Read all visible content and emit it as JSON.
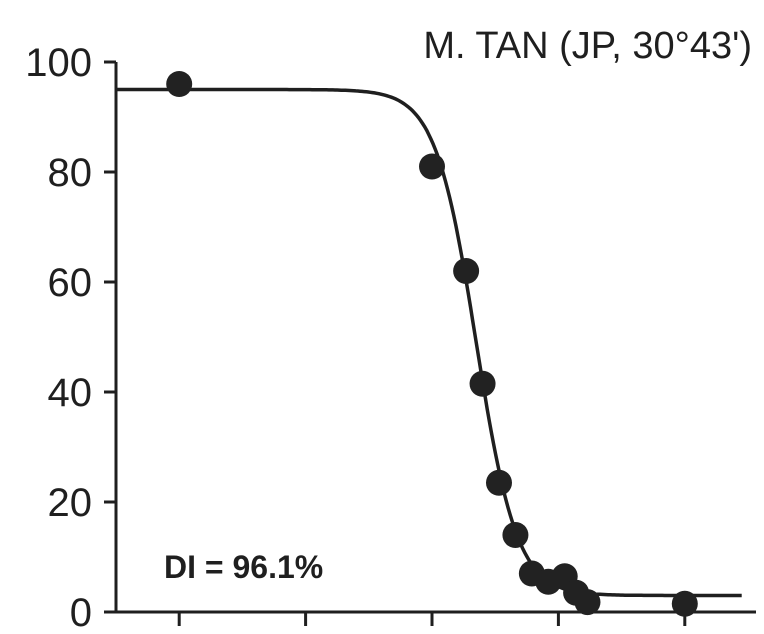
{
  "chart_data": {
    "type": "scatter",
    "title": "M. TAN (JP, 30°43')",
    "annotation": "DI = 96.1%",
    "xlabel": "",
    "ylabel": "",
    "ylim": [
      0,
      100
    ],
    "xlim": [
      0,
      5
    ],
    "y_ticks": [
      0,
      20,
      40,
      60,
      80,
      100
    ],
    "y_tick_labels": [
      "0",
      "20",
      "40",
      "60",
      "80",
      "100"
    ],
    "x_ticks": [
      0.5,
      1.5,
      2.5,
      3.5,
      4.5
    ],
    "grid": false,
    "series": [
      {
        "points": [
          {
            "x": 0.5,
            "y": 96
          },
          {
            "x": 2.5,
            "y": 81
          },
          {
            "x": 2.77,
            "y": 62
          },
          {
            "x": 2.9,
            "y": 41.5
          },
          {
            "x": 3.03,
            "y": 23.5
          },
          {
            "x": 3.16,
            "y": 14
          },
          {
            "x": 3.29,
            "y": 7
          },
          {
            "x": 3.42,
            "y": 5.5
          },
          {
            "x": 3.55,
            "y": 6.5
          },
          {
            "x": 3.64,
            "y": 3.5
          },
          {
            "x": 3.73,
            "y": 1.8
          },
          {
            "x": 4.5,
            "y": 1.5
          }
        ]
      }
    ],
    "fit_curve": {
      "type": "logistic",
      "upper": 95,
      "lower": 3,
      "midpoint": 2.85,
      "slope": 6.2,
      "x_start": 0,
      "x_end": 4.95
    },
    "colors": {
      "ink": "#1f1f1f",
      "marker": "#222222"
    }
  }
}
